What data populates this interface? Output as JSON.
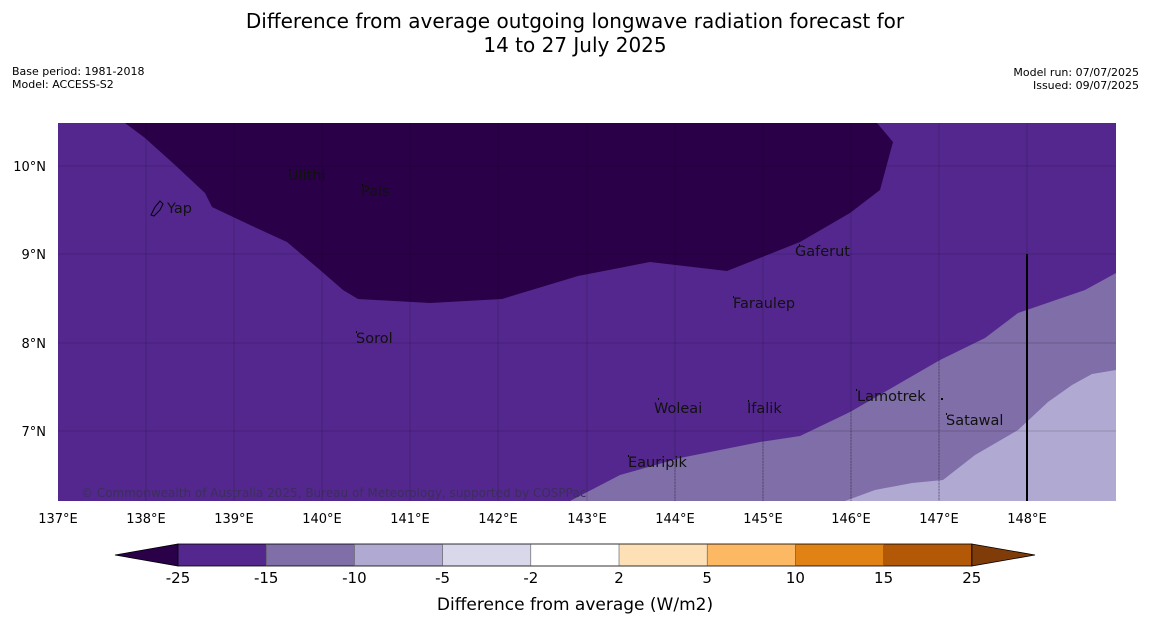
{
  "title_line1": "Difference from average outgoing longwave radiation forecast for",
  "title_line2": "14 to 27 July 2025",
  "meta_left": {
    "base_period": "Base period: 1981-2018",
    "model": "Model: ACCESS-S2"
  },
  "meta_right": {
    "model_run": "Model run: 07/07/2025",
    "issued": "Issued: 09/07/2025"
  },
  "map": {
    "lon_ticks": [
      "137°E",
      "138°E",
      "139°E",
      "140°E",
      "141°E",
      "142°E",
      "143°E",
      "144°E",
      "145°E",
      "146°E",
      "147°E",
      "148°E"
    ],
    "lat_ticks": [
      "10°N",
      "9°N",
      "8°N",
      "7°N"
    ],
    "places": [
      "Ulithi",
      "Pais",
      "Yap",
      "Gaferut",
      "Faraulep",
      "Sorol",
      "Woleai",
      "Ifalik",
      "Lamotrek",
      "Satawal",
      "Eauripik"
    ],
    "copyright": "© Commonwealth of Australia 2025, Bureau of Meteorology, supported by COSPPac"
  },
  "colorbar": {
    "ticks": [
      "-25",
      "-15",
      "-10",
      "-5",
      "-2",
      "2",
      "5",
      "10",
      "15",
      "25"
    ],
    "colors": [
      "#2a0049",
      "#54278f",
      "#7f6ea8",
      "#b0a9d2",
      "#d8d8ea",
      "#ffffff",
      "#fee0b6",
      "#fdb863",
      "#e08214",
      "#b35806",
      "#7f3b08"
    ],
    "title": "Difference from average (W/m2)"
  }
}
